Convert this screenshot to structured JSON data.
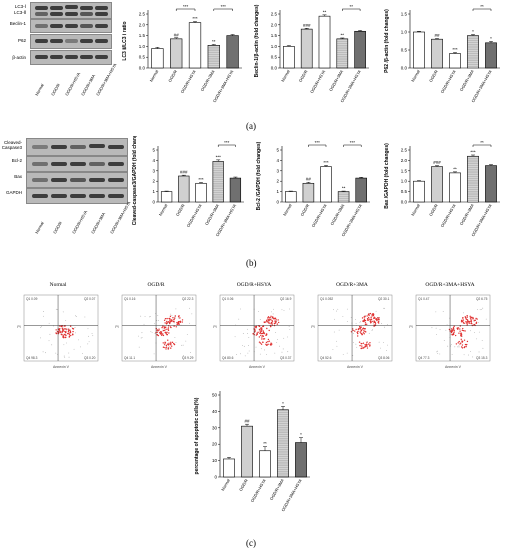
{
  "panel_labels": {
    "a": "(a)",
    "b": "(b)",
    "c": "(c)"
  },
  "lanes": [
    "Normal",
    "OGD/R",
    "OGD/R+HSYA",
    "OGD/R+3MA",
    "OGD/R+3MA+HSYA"
  ],
  "blot_a_rows": [
    "LC3-Ⅰ",
    "LC3-Ⅱ",
    "Beclin-1",
    "P62",
    "β-actin"
  ],
  "blot_b_rows": [
    "Cleaved-Caspase3",
    "Bcl-2",
    "Bax",
    "GAPDH"
  ],
  "flow": {
    "titles": [
      "Normal",
      "OGD/R",
      "OGD/R+HSYA",
      "OGD/R+3MA",
      "OGD/R+3MA+HSYA"
    ],
    "axis_x": "Annexin V",
    "axis_y": "PI",
    "quadrants": [
      {
        "q1": "0.09",
        "q2": "0.07",
        "q3": "0.20",
        "q4": "98.3"
      },
      {
        "q1": "0.16",
        "q2": "22.3",
        "q3": "9.29",
        "q4": "11.1"
      },
      {
        "q1": "0.06",
        "q2": "16.9",
        "q3": "0.37",
        "q4": "80.6"
      },
      {
        "q1": "0.052",
        "q2": "30.1",
        "q3": "8.06",
        "q4": "52.6"
      },
      {
        "q1": "0.47",
        "q2": "6.75",
        "q3": "15.3",
        "q4": "77.3"
      }
    ]
  },
  "chart_data": [
    {
      "type": "bar",
      "categories": [
        "Normal",
        "OGD/R",
        "OGD/R+HSYA",
        "OGD/R+3MA",
        "OGD/R+3MA+HSYA"
      ],
      "values": [
        0.9,
        1.35,
        2.1,
        1.05,
        1.5
      ],
      "errors": [
        0.06,
        0.05,
        0.05,
        0.04,
        0.05
      ],
      "ylabel": "LC3 Ⅱ/LC3 Ⅰ ratio",
      "ylim": [
        0,
        2.5
      ],
      "yticks": [
        0.0,
        0.5,
        1.0,
        1.5,
        2.0,
        2.5
      ],
      "sig": [
        "",
        "##",
        "***",
        "**",
        ""
      ],
      "brackets": [
        {
          "from": 1,
          "to": 2,
          "label": "***"
        },
        {
          "from": 3,
          "to": 4,
          "label": "***"
        }
      ]
    },
    {
      "type": "bar",
      "categories": [
        "Normal",
        "OGD/R",
        "OGD/R+HSYA",
        "OGD/R+3MA",
        "OGD/R+3MA+HSYA"
      ],
      "values": [
        1.0,
        1.8,
        2.4,
        1.35,
        1.7
      ],
      "errors": [
        0.04,
        0.04,
        0.06,
        0.04,
        0.04
      ],
      "ylabel": "Beclin-1/β-actin (fold changes)",
      "ylim": [
        0,
        2.5
      ],
      "yticks": [
        0.0,
        0.5,
        1.0,
        1.5,
        2.0,
        2.5
      ],
      "sig": [
        "",
        "###",
        "**",
        "**",
        ""
      ],
      "brackets": [
        {
          "from": 3,
          "to": 4,
          "label": "**"
        }
      ]
    },
    {
      "type": "bar",
      "categories": [
        "Normal",
        "OGD/R",
        "OGD/R+HSYA",
        "OGD/R+3MA",
        "OGD/R+3MA+HSYA"
      ],
      "values": [
        1.0,
        0.8,
        0.4,
        0.9,
        0.7
      ],
      "errors": [
        0.02,
        0.02,
        0.03,
        0.03,
        0.04
      ],
      "ylabel": "P62 /β-actin (fold changes)",
      "ylim": [
        0,
        1.5
      ],
      "yticks": [
        0.0,
        0.5,
        1.0,
        1.5
      ],
      "sig": [
        "",
        "##",
        "***",
        "*",
        "*"
      ],
      "brackets": [
        {
          "from": 3,
          "to": 4,
          "label": "**"
        }
      ]
    },
    {
      "type": "bar",
      "categories": [
        "Normal",
        "OGD/R",
        "OGD/R+HSYA",
        "OGD/R+3MA",
        "OGD/R+3MA+HSYA"
      ],
      "values": [
        1.0,
        2.5,
        1.8,
        3.9,
        2.3
      ],
      "errors": [
        0.05,
        0.08,
        0.08,
        0.15,
        0.1
      ],
      "ylabel": "Cleaved-caspase3/GAPDH (fold changes)",
      "ylim": [
        0,
        5
      ],
      "yticks": [
        0,
        1,
        2,
        3,
        4,
        5
      ],
      "sig": [
        "",
        "###",
        "***",
        "***",
        ""
      ],
      "brackets": [
        {
          "from": 3,
          "to": 4,
          "label": "***"
        }
      ]
    },
    {
      "type": "bar",
      "categories": [
        "Normal",
        "OGD/R",
        "OGD/R+HSYA",
        "OGD/R+3MA",
        "OGD/R+3MA+HSYA"
      ],
      "values": [
        1.0,
        1.8,
        3.4,
        1.0,
        2.3
      ],
      "errors": [
        0.05,
        0.1,
        0.12,
        0.05,
        0.08
      ],
      "ylabel": "Bcl-2 /GAPDH (fold changes)",
      "ylim": [
        0,
        5
      ],
      "yticks": [
        0,
        1,
        2,
        3,
        4,
        5
      ],
      "sig": [
        "",
        "##",
        "***",
        "**",
        ""
      ],
      "brackets": [
        {
          "from": 1,
          "to": 2,
          "label": "***"
        },
        {
          "from": 3,
          "to": 4,
          "label": "***"
        }
      ]
    },
    {
      "type": "bar",
      "categories": [
        "Normal",
        "OGD/R",
        "OGD/R+HSYA",
        "OGD/R+3MA",
        "OGD/R+3MA+HSYA"
      ],
      "values": [
        1.0,
        1.7,
        1.4,
        2.2,
        1.75
      ],
      "errors": [
        0.03,
        0.05,
        0.05,
        0.06,
        0.05
      ],
      "ylabel": "Bax /GAPDH (fold changes)",
      "ylim": [
        0,
        2.5
      ],
      "yticks": [
        0.0,
        0.5,
        1.0,
        1.5,
        2.0,
        2.5
      ],
      "sig": [
        "",
        "###",
        "**",
        "***",
        ""
      ],
      "brackets": [
        {
          "from": 3,
          "to": 4,
          "label": "**"
        }
      ]
    },
    {
      "type": "bar",
      "categories": [
        "Normal",
        "OGD/R",
        "OGD/R+HSYA",
        "OGD/R+3MA",
        "OGD/R+3MA+HSYA"
      ],
      "values": [
        11,
        31,
        16,
        41,
        21
      ],
      "errors": [
        1.0,
        1.2,
        2.5,
        2.0,
        3.0
      ],
      "ylabel": "percentage of apoptotic cells(%)",
      "ylim": [
        0,
        50
      ],
      "yticks": [
        0,
        10,
        20,
        30,
        40,
        50
      ],
      "sig": [
        "",
        "##",
        "**",
        "*",
        "*"
      ],
      "brackets": []
    }
  ],
  "colors": {
    "bar_fills": [
      "#ffffff",
      "#d0d0d0",
      "#ffffff",
      "#bcbcbc",
      "#707070"
    ],
    "flow_dots": "#e03030",
    "flow_outliers": "#999999"
  }
}
